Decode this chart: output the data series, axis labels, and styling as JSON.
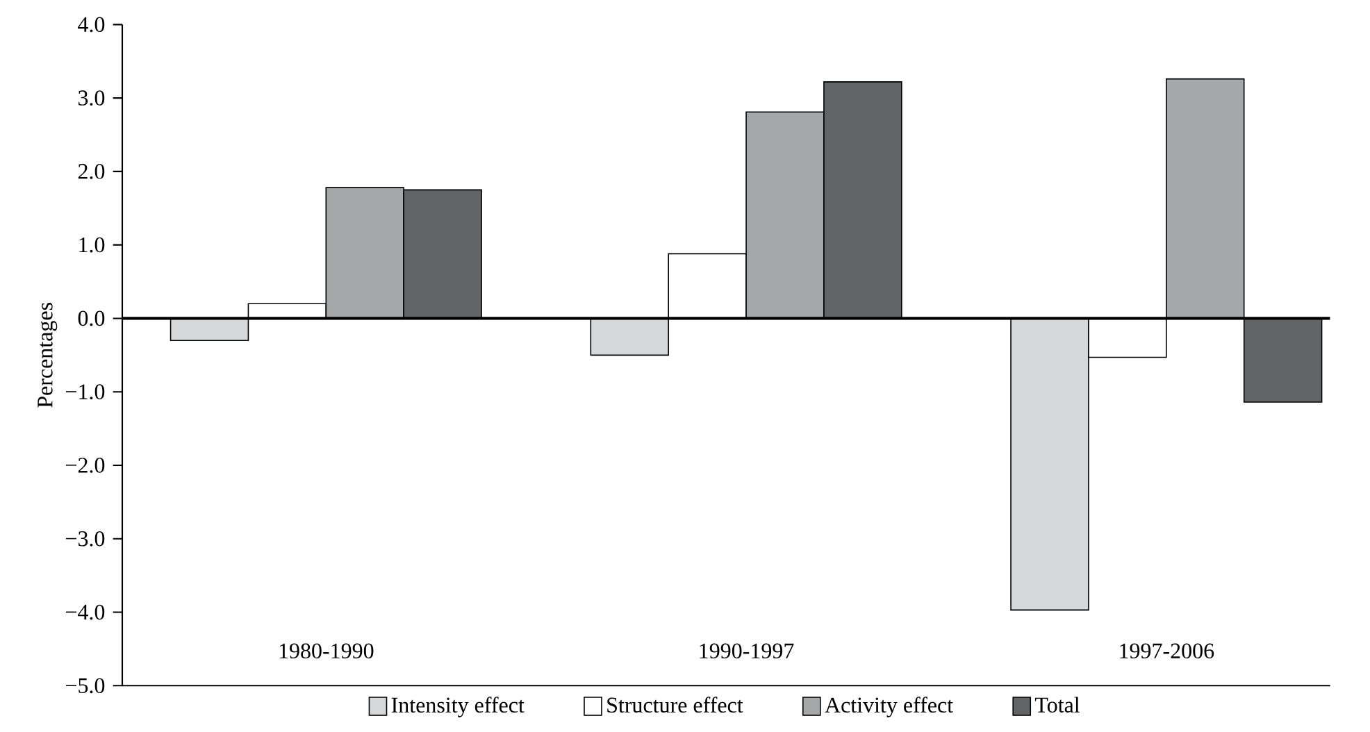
{
  "chart_data": {
    "type": "bar",
    "ylabel": "Percentages",
    "categories": [
      "1980-1990",
      "1990-1997",
      "1997-2006"
    ],
    "series": [
      {
        "name": "Intensity effect",
        "color": "#d6d7d9",
        "values": [
          -0.3,
          -0.5,
          -3.97
        ]
      },
      {
        "name": "Structure effect",
        "color": "#ffffff",
        "values": [
          0.2,
          0.88,
          -0.53
        ]
      },
      {
        "name": "Activity effect",
        "color": "#a6a7a9",
        "values": [
          1.78,
          2.81,
          3.26
        ]
      },
      {
        "name": "Total",
        "color": "#636466",
        "values": [
          1.75,
          3.22,
          -1.14
        ]
      }
    ],
    "ylim": [
      -5,
      4
    ],
    "yticks": [
      {
        "value": -5,
        "label": "−5.0"
      },
      {
        "value": -4,
        "label": "−4.0"
      },
      {
        "value": -3,
        "label": "−3.0"
      },
      {
        "value": -2,
        "label": "−2.0"
      },
      {
        "value": -1,
        "label": "−1.0"
      },
      {
        "value": 0,
        "label": "0.0"
      },
      {
        "value": 1,
        "label": "1.0"
      },
      {
        "value": 2,
        "label": "2.0"
      },
      {
        "value": 3,
        "label": "3.0"
      },
      {
        "value": 4,
        "label": "4.0"
      }
    ],
    "legend": "bottom"
  }
}
